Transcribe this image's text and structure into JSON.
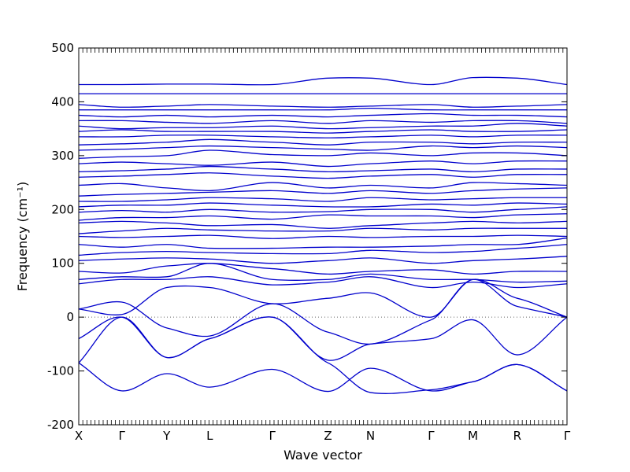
{
  "chart_data": {
    "type": "line",
    "xlabel": "Wave vector",
    "ylabel": "Frequency (cm⁻¹)",
    "ylim": [
      -200,
      500
    ],
    "yticks": [
      -200,
      -100,
      0,
      100,
      200,
      300,
      400,
      500
    ],
    "grid": false,
    "zero_line": true,
    "line_color": "#0000cc",
    "x_points": [
      {
        "label": "X",
        "x": 0
      },
      {
        "label": "Γ",
        "x": 0.71
      },
      {
        "label": "Y",
        "x": 1.45
      },
      {
        "label": "L",
        "x": 2.16
      },
      {
        "label": "Γ",
        "x": 3.19
      },
      {
        "label": "Z",
        "x": 4.11
      },
      {
        "label": "N",
        "x": 4.81
      },
      {
        "label": "Γ",
        "x": 5.81
      },
      {
        "label": "M",
        "x": 6.5
      },
      {
        "label": "R",
        "x": 7.23
      },
      {
        "label": "Γ",
        "x": 8.05
      }
    ],
    "series": [
      {
        "values": [
          -85,
          0,
          -75,
          -40,
          0,
          -85,
          -140,
          -135,
          -120,
          -88,
          -137
        ]
      },
      {
        "values": [
          -85,
          -137,
          -105,
          -130,
          -97,
          -138,
          -95,
          -137,
          -120,
          -88,
          -137
        ]
      },
      {
        "values": [
          -40,
          0,
          -75,
          -40,
          0,
          -80,
          -50,
          -40,
          -5,
          -70,
          0
        ]
      },
      {
        "values": [
          15,
          28,
          -20,
          -35,
          25,
          -28,
          -50,
          -5,
          70,
          20,
          0
        ]
      },
      {
        "values": [
          15,
          5,
          55,
          55,
          25,
          35,
          45,
          0,
          70,
          35,
          0
        ]
      },
      {
        "values": [
          62,
          70,
          70,
          75,
          60,
          65,
          75,
          55,
          65,
          55,
          62
        ]
      },
      {
        "values": [
          70,
          75,
          75,
          100,
          70,
          70,
          80,
          70,
          70,
          65,
          67
        ]
      },
      {
        "values": [
          85,
          82,
          95,
          100,
          90,
          80,
          85,
          88,
          80,
          85,
          85
        ]
      },
      {
        "values": [
          105,
          108,
          110,
          108,
          100,
          105,
          110,
          100,
          105,
          108,
          113
        ]
      },
      {
        "values": [
          115,
          120,
          122,
          120,
          118,
          118,
          124,
          120,
          122,
          128,
          135
        ]
      },
      {
        "values": [
          135,
          130,
          135,
          128,
          128,
          130,
          130,
          132,
          135,
          135,
          147
        ]
      },
      {
        "values": [
          150,
          148,
          150,
          152,
          146,
          150,
          148,
          150,
          150,
          152,
          150
        ]
      },
      {
        "values": [
          155,
          160,
          165,
          162,
          160,
          160,
          165,
          162,
          165,
          165,
          165
        ]
      },
      {
        "values": [
          175,
          178,
          175,
          170,
          172,
          165,
          170,
          175,
          178,
          175,
          178
        ]
      },
      {
        "values": [
          180,
          185,
          185,
          188,
          182,
          190,
          188,
          188,
          185,
          190,
          192
        ]
      },
      {
        "values": [
          195,
          198,
          195,
          200,
          195,
          196,
          200,
          200,
          195,
          200,
          205
        ]
      },
      {
        "values": [
          205,
          208,
          208,
          212,
          208,
          205,
          205,
          210,
          208,
          212,
          210
        ]
      },
      {
        "values": [
          215,
          215,
          218,
          222,
          220,
          215,
          222,
          218,
          220,
          222,
          222
        ]
      },
      {
        "values": [
          225,
          228,
          230,
          232,
          235,
          230,
          235,
          230,
          235,
          238,
          240
        ]
      },
      {
        "values": [
          245,
          248,
          240,
          235,
          250,
          240,
          245,
          240,
          250,
          248,
          245
        ]
      },
      {
        "values": [
          260,
          262,
          265,
          268,
          262,
          258,
          262,
          265,
          260,
          265,
          265
        ]
      },
      {
        "values": [
          270,
          272,
          275,
          280,
          275,
          270,
          272,
          275,
          270,
          275,
          275
        ]
      },
      {
        "values": [
          285,
          288,
          285,
          282,
          288,
          280,
          285,
          290,
          285,
          290,
          290
        ]
      },
      {
        "values": [
          295,
          298,
          300,
          310,
          302,
          300,
          305,
          300,
          305,
          305,
          300
        ]
      },
      {
        "values": [
          310,
          312,
          315,
          318,
          315,
          312,
          310,
          318,
          315,
          318,
          315
        ]
      },
      {
        "values": [
          320,
          322,
          325,
          330,
          325,
          320,
          325,
          325,
          322,
          325,
          325
        ]
      },
      {
        "values": [
          335,
          335,
          338,
          338,
          335,
          333,
          335,
          338,
          335,
          338,
          338
        ]
      },
      {
        "values": [
          345,
          348,
          345,
          345,
          345,
          342,
          345,
          348,
          345,
          345,
          348
        ]
      },
      {
        "values": [
          355,
          350,
          352,
          352,
          355,
          350,
          352,
          355,
          355,
          360,
          355
        ]
      },
      {
        "values": [
          365,
          365,
          362,
          360,
          365,
          360,
          365,
          362,
          365,
          365,
          360
        ]
      },
      {
        "values": [
          375,
          372,
          375,
          372,
          375,
          372,
          375,
          378,
          375,
          375,
          372
        ]
      },
      {
        "values": [
          385,
          385,
          385,
          385,
          385,
          385,
          388,
          385,
          385,
          385,
          385
        ]
      },
      {
        "values": [
          395,
          390,
          392,
          395,
          392,
          390,
          392,
          395,
          390,
          392,
          395
        ]
      },
      {
        "values": [
          415,
          415,
          415,
          415,
          415,
          415,
          415,
          415,
          415,
          415,
          415
        ]
      },
      {
        "values": [
          432,
          432,
          433,
          433,
          432,
          444,
          444,
          432,
          445,
          444,
          432
        ]
      }
    ]
  }
}
